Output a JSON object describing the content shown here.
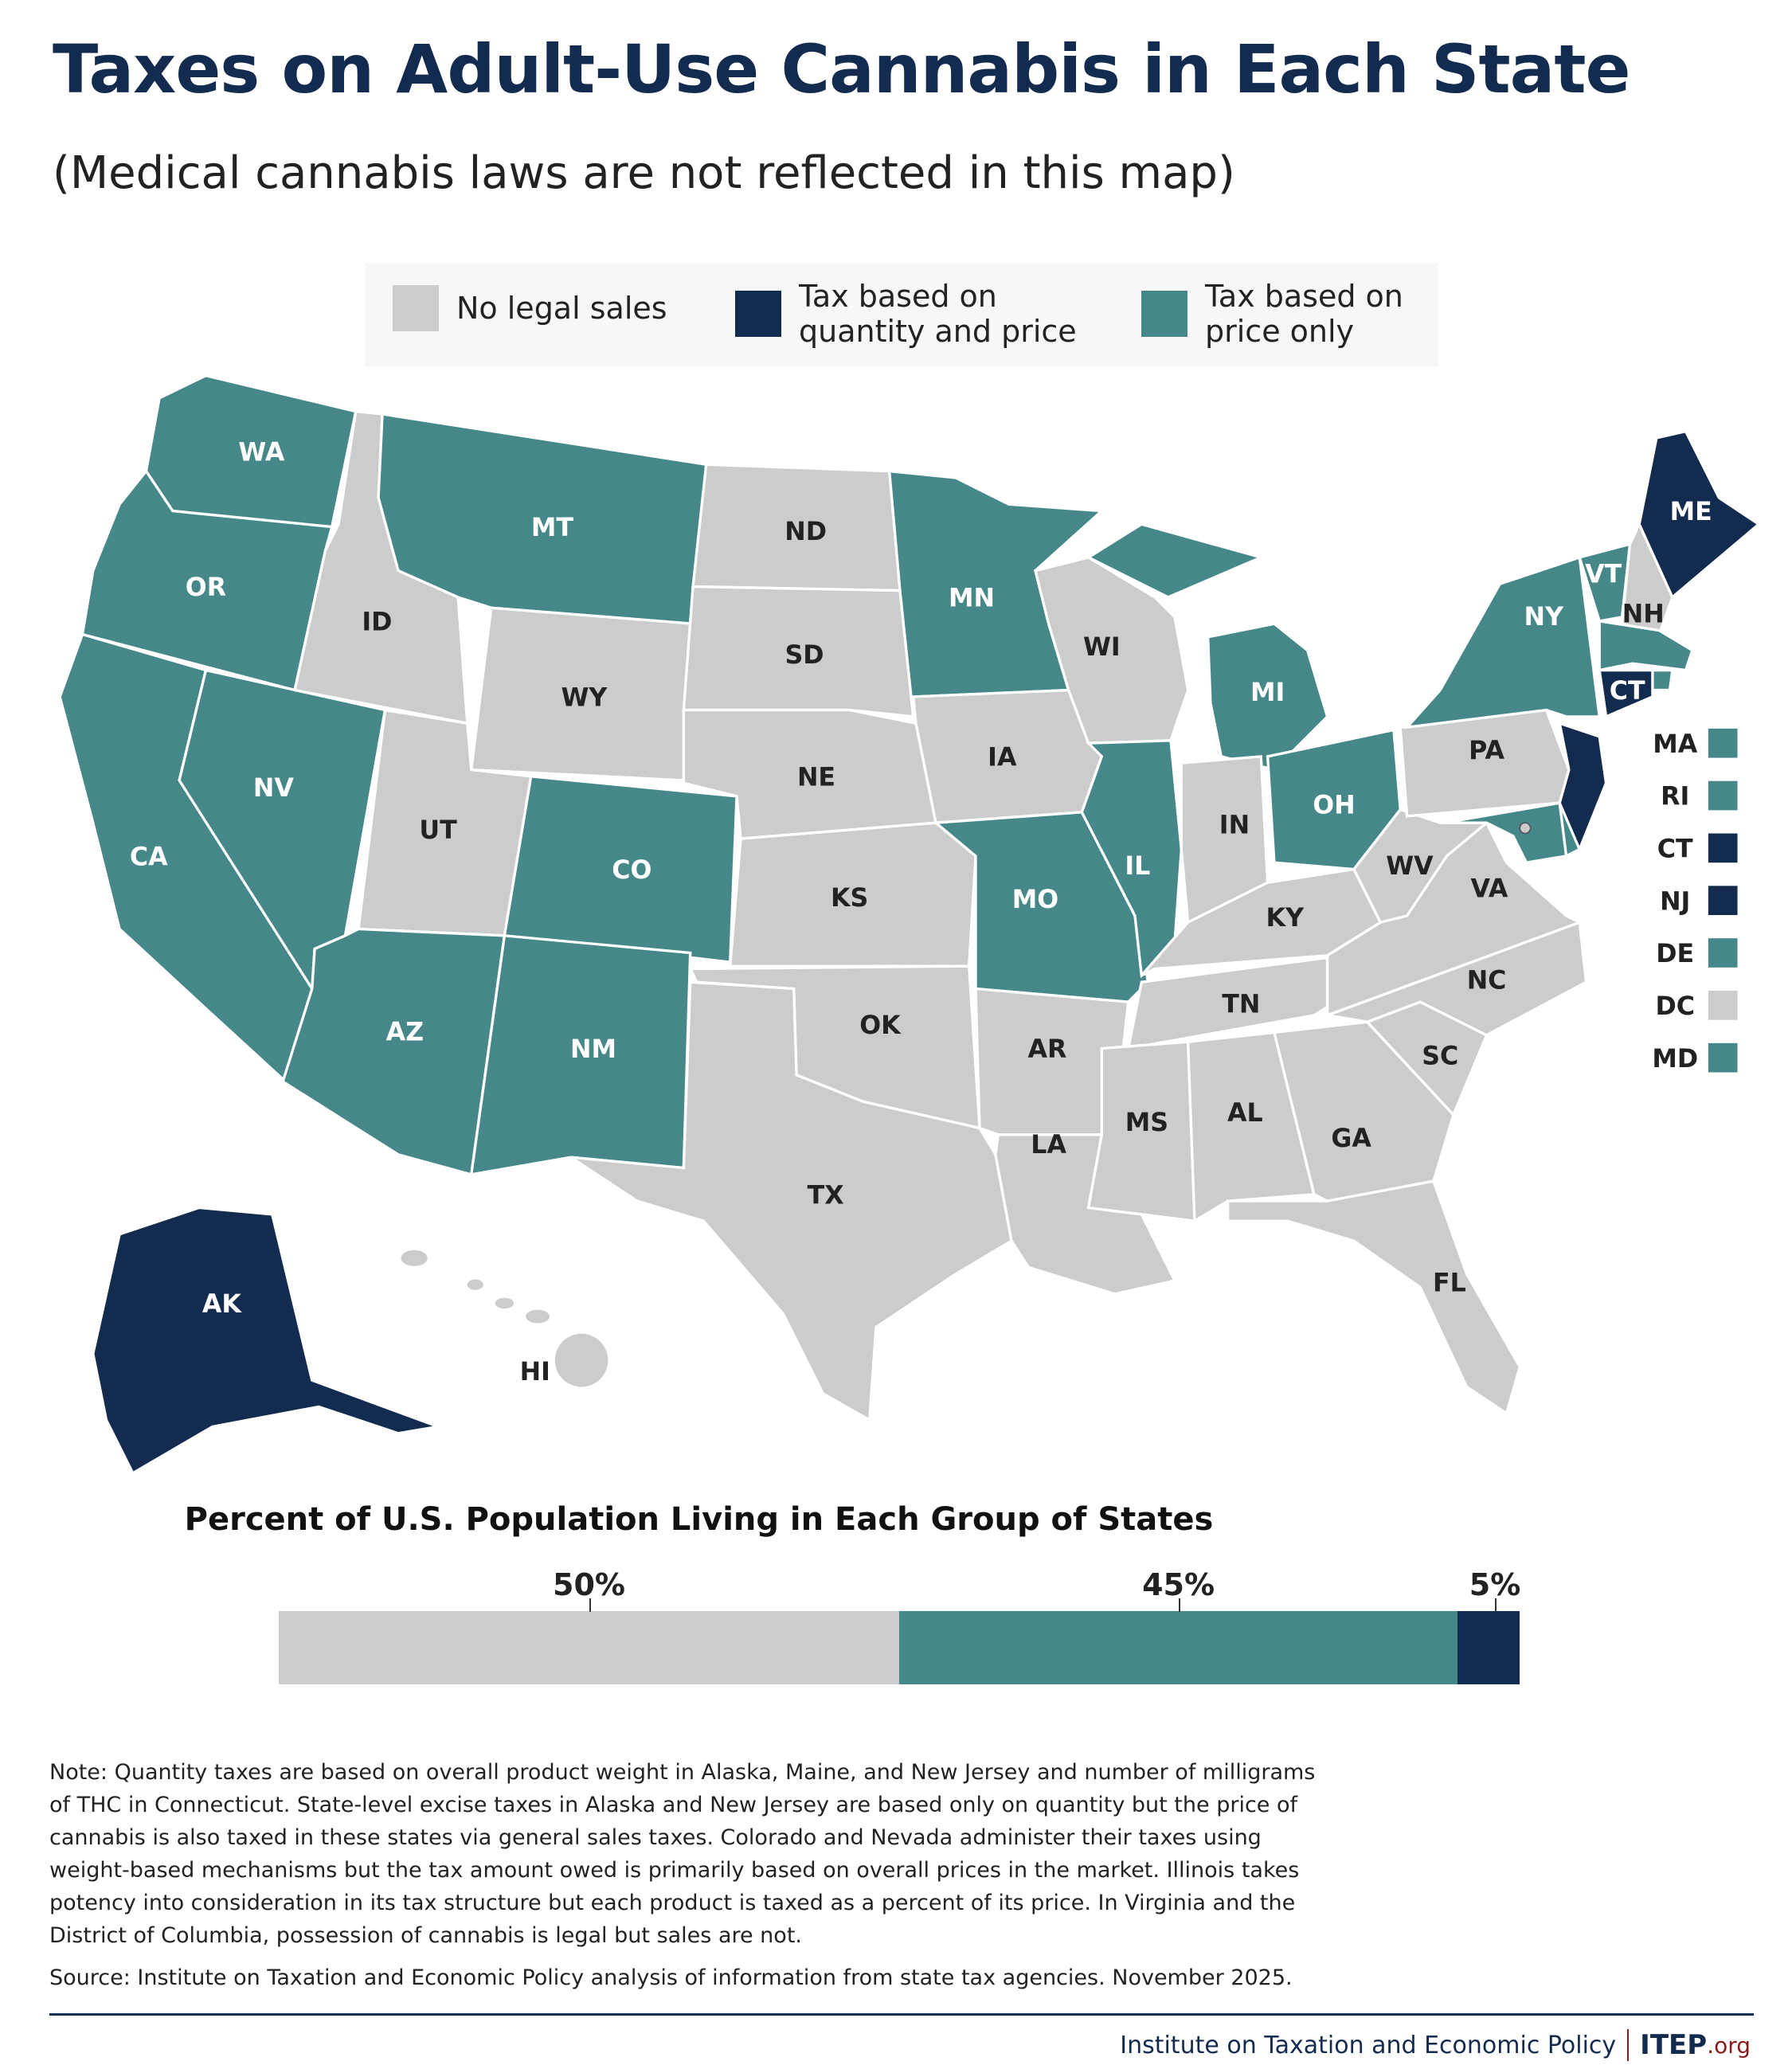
{
  "title": "Taxes on Adult-Use Cannabis in Each State",
  "subtitle": "(Medical cannabis laws are not reflected in this map)",
  "legend": [
    {
      "label1": "No legal sales",
      "label2": "",
      "color": "#cccccc"
    },
    {
      "label1": "Tax based on",
      "label2": "quantity and price",
      "color": "#142b50"
    },
    {
      "label1": "Tax based on",
      "label2": "price only",
      "color": "#46888a"
    }
  ],
  "colors": {
    "none": "#cccccc",
    "qty": "#142b50",
    "price": "#46888a",
    "title": "#142b50",
    "accent": "#8a1c1c"
  },
  "states": {
    "WA": "price",
    "OR": "price",
    "CA": "price",
    "NV": "price",
    "ID": "none",
    "MT": "price",
    "WY": "none",
    "UT": "none",
    "CO": "price",
    "AZ": "price",
    "NM": "price",
    "ND": "none",
    "SD": "none",
    "NE": "none",
    "KS": "none",
    "OK": "none",
    "TX": "none",
    "MN": "price",
    "IA": "none",
    "MO": "price",
    "AR": "none",
    "LA": "none",
    "WI": "none",
    "IL": "price",
    "MI": "price",
    "IN": "none",
    "OH": "price",
    "KY": "none",
    "TN": "none",
    "MS": "none",
    "AL": "none",
    "GA": "none",
    "FL": "none",
    "SC": "none",
    "NC": "none",
    "VA": "none",
    "WV": "none",
    "PA": "none",
    "NY": "price",
    "VT": "price",
    "NH": "none",
    "ME": "qty",
    "MA": "price",
    "RI": "price",
    "CT": "qty",
    "NJ": "qty",
    "DE": "price",
    "MD": "price",
    "AK": "qty",
    "HI": "none",
    "DC": "none"
  },
  "small_states": [
    "MA",
    "RI",
    "CT",
    "NJ",
    "DE",
    "DC",
    "MD"
  ],
  "chart_data": {
    "type": "bar",
    "title": "Percent of U.S. Population Living in Each Group of States",
    "categories": [
      "No legal sales",
      "Tax based on price only",
      "Tax based on quantity and price"
    ],
    "values": [
      50,
      45,
      5
    ],
    "labels": [
      "50%",
      "45%",
      "5%"
    ],
    "xlim": [
      0,
      100
    ]
  },
  "note": "Note: Quantity taxes are based on overall product weight in Alaska, Maine, and New Jersey and number of milligrams of THC in Connecticut. State-level excise taxes in Alaska and New Jersey are based only on quantity but the price of cannabis is also taxed in these states via general sales taxes. Colorado and Nevada administer their taxes using weight-based mechanisms but the tax amount owed is primarily based on overall prices in the market. Illinois takes potency into consideration in its tax structure but each product is taxed as a percent of its price. In Virginia and the District of Columbia, possession of cannabis is legal but sales are not.",
  "source": "Source: Institute on Taxation and Economic Policy analysis of information from state tax agencies. November 2025.",
  "footer": {
    "org": "Institute on Taxation and Economic Policy",
    "logo_main": "ITEP",
    "logo_suffix": ".org"
  }
}
